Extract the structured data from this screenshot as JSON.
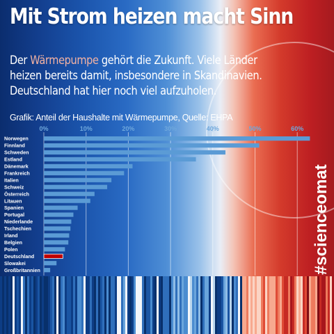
{
  "title": "Mit Strom heizen macht Sinn",
  "intro": {
    "before": "Der ",
    "highlight": "Wärmepumpe",
    "after": " gehört die Zukunft. Viele Länder heizen bereits damit, insbesondere in Skandinavien. Deutschland hat hier noch viel aufzuholen."
  },
  "hashtag": "#scienceomat",
  "colors": {
    "bar": "#5b9bd5",
    "bar_highlight": "#c00000",
    "gridline": "#ffffff",
    "tick_label": "#6fa8dc"
  },
  "chart_data": {
    "type": "bar",
    "orientation": "horizontal",
    "title": "Grafik: Anteil der Haushalte mit Wärmepumpe, Quelle: EHPA",
    "categories": [
      "Norwegen",
      "Finnland",
      "Schweden",
      "Estland",
      "Dänemark",
      "Frankreich",
      "Italien",
      "Schweiz",
      "Österreich",
      "Litauen",
      "Spanien",
      "Portugal",
      "Niederlande",
      "Tschechien",
      "Irland",
      "Belgien",
      "Polen",
      "Deutschland",
      "Slowakei",
      "Großbritannien"
    ],
    "values": [
      63,
      51,
      43,
      36,
      21,
      19,
      16,
      15,
      12,
      11,
      8,
      7,
      6.5,
      6.3,
      6,
      5.8,
      5,
      4.5,
      3,
      1.5
    ],
    "highlight": "Deutschland",
    "xticks": [
      "0%",
      "10%",
      "20%",
      "30%",
      "40%",
      "50%",
      "60%"
    ],
    "xlim": [
      0,
      63
    ],
    "grid": true,
    "legend": "none"
  }
}
